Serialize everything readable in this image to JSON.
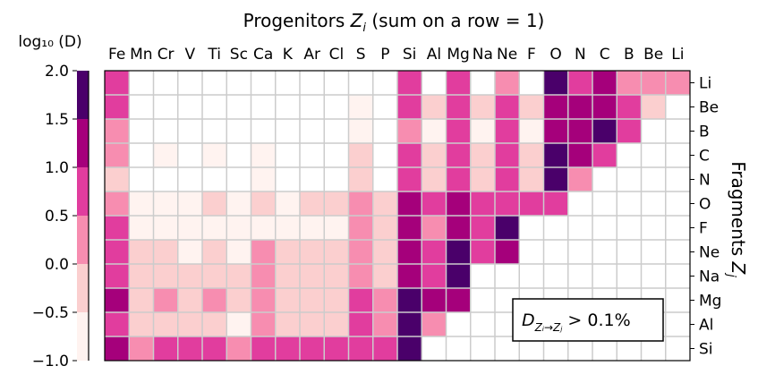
{
  "chart_data": {
    "type": "heatmap",
    "title_prefix": "Progenitors ",
    "title_symbol": "Z",
    "title_sub": "i",
    "title_suffix": " (sum on a row = 1)",
    "ylabel_right_prefix": "Fragments ",
    "ylabel_right_symbol": "Z",
    "ylabel_right_sub": "j",
    "colorbar_label": "log₁₀ (D)",
    "annotation_prefix": "D",
    "annotation_sub": "Zᵢ→Zⱼ",
    "annotation_suffix": " > 0.1%",
    "x_categories": [
      "Fe",
      "Mn",
      "Cr",
      "V",
      "Ti",
      "Sc",
      "Ca",
      "K",
      "Ar",
      "Cl",
      "S",
      "P",
      "Si",
      "Al",
      "Mg",
      "Na",
      "Ne",
      "F",
      "O",
      "N",
      "C",
      "B",
      "Be",
      "Li"
    ],
    "y_categories": [
      "Li",
      "Be",
      "B",
      "C",
      "N",
      "O",
      "F",
      "Ne",
      "Na",
      "Mg",
      "Al",
      "Si"
    ],
    "colorbar_ticks": [
      "2.0",
      "1.5",
      "1.0",
      "0.5",
      "0.0",
      "−0.5",
      "−1.0"
    ],
    "colorbar_range": [
      -1.0,
      2.0
    ],
    "color_levels": [
      -1.0,
      -0.5,
      0.0,
      0.5,
      1.0,
      1.5,
      2.0
    ],
    "level_colors": [
      "#fff3f0",
      "#fbcfcf",
      "#f78db0",
      "#e13d9e",
      "#a5007b",
      "#4a006a"
    ],
    "empty_color": "#ffffff",
    "grid_color": "#cccccc",
    "values": [
      [
        0.75,
        null,
        null,
        null,
        null,
        null,
        null,
        null,
        null,
        null,
        null,
        null,
        0.75,
        null,
        0.75,
        null,
        0.25,
        null,
        1.75,
        0.75,
        1.25,
        0.25,
        0.25,
        0.25
      ],
      [
        0.75,
        null,
        null,
        null,
        null,
        null,
        null,
        null,
        null,
        null,
        -0.75,
        null,
        0.75,
        -0.25,
        0.75,
        -0.25,
        0.75,
        -0.25,
        1.25,
        1.25,
        1.25,
        0.75,
        -0.25,
        null
      ],
      [
        0.25,
        null,
        null,
        null,
        null,
        null,
        null,
        null,
        null,
        null,
        -0.75,
        null,
        0.25,
        -0.75,
        0.75,
        -0.75,
        0.75,
        -0.75,
        1.25,
        1.25,
        1.75,
        0.75,
        null,
        null
      ],
      [
        0.25,
        null,
        -0.75,
        null,
        -0.75,
        null,
        -0.75,
        null,
        null,
        null,
        -0.25,
        null,
        0.75,
        -0.25,
        0.75,
        -0.25,
        0.75,
        -0.25,
        1.75,
        1.25,
        0.75,
        null,
        null,
        null
      ],
      [
        -0.25,
        null,
        null,
        null,
        null,
        null,
        -0.75,
        null,
        null,
        null,
        -0.25,
        null,
        0.75,
        -0.25,
        0.75,
        -0.25,
        0.75,
        -0.25,
        1.75,
        0.25,
        null,
        null,
        null,
        null
      ],
      [
        0.25,
        -0.75,
        -0.75,
        -0.75,
        -0.25,
        -0.75,
        -0.25,
        -0.75,
        -0.25,
        -0.25,
        0.25,
        -0.25,
        1.25,
        0.75,
        1.25,
        0.75,
        0.75,
        0.75,
        0.75,
        null,
        null,
        null,
        null,
        null
      ],
      [
        0.75,
        -0.75,
        -0.75,
        -0.75,
        -0.75,
        -0.75,
        -0.75,
        -0.75,
        -0.75,
        -0.75,
        0.25,
        -0.25,
        1.25,
        0.25,
        1.25,
        0.75,
        1.75,
        null,
        null,
        null,
        null,
        null,
        null,
        null
      ],
      [
        0.75,
        -0.25,
        -0.25,
        -0.75,
        -0.25,
        -0.75,
        0.25,
        -0.25,
        -0.25,
        -0.25,
        0.25,
        -0.25,
        1.25,
        0.75,
        1.75,
        0.75,
        1.25,
        null,
        null,
        null,
        null,
        null,
        null,
        null
      ],
      [
        0.75,
        -0.25,
        -0.25,
        -0.25,
        -0.25,
        -0.25,
        0.25,
        -0.25,
        -0.25,
        -0.25,
        0.25,
        -0.25,
        1.25,
        0.75,
        1.75,
        null,
        null,
        null,
        null,
        null,
        null,
        null,
        null,
        null
      ],
      [
        1.25,
        -0.25,
        0.25,
        -0.25,
        0.25,
        -0.25,
        0.25,
        -0.25,
        -0.25,
        -0.25,
        0.75,
        0.25,
        1.75,
        1.25,
        1.25,
        null,
        null,
        null,
        null,
        null,
        null,
        null,
        null,
        null
      ],
      [
        0.75,
        -0.25,
        -0.25,
        -0.25,
        -0.25,
        -0.75,
        0.25,
        -0.25,
        -0.25,
        -0.25,
        0.75,
        0.25,
        1.75,
        0.25,
        null,
        null,
        null,
        null,
        null,
        null,
        null,
        null,
        null,
        null
      ],
      [
        1.25,
        0.25,
        0.75,
        0.75,
        0.75,
        0.25,
        0.75,
        0.75,
        0.75,
        0.75,
        0.75,
        0.75,
        1.75,
        null,
        null,
        null,
        null,
        null,
        null,
        null,
        null,
        null,
        null,
        null
      ]
    ]
  }
}
